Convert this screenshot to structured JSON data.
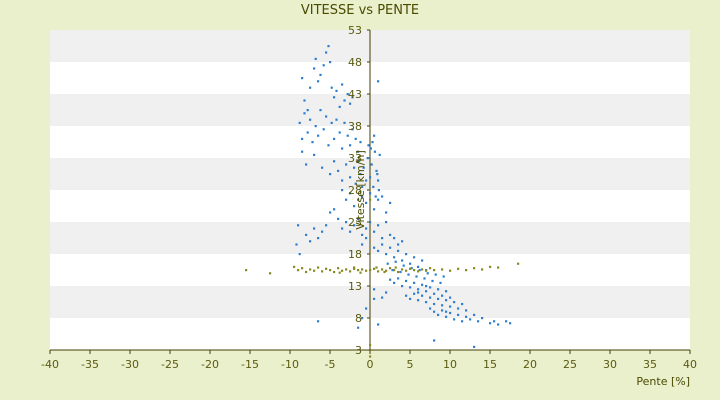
{
  "chart_data": {
    "type": "scatter",
    "title": "VITESSE vs PENTE",
    "xlabel": "Pente [%]",
    "ylabel": "Vitesse [km/h]",
    "xlim": [
      -40,
      40
    ],
    "ylim": [
      3,
      53
    ],
    "x_ticks": [
      -40,
      -35,
      -30,
      -25,
      -20,
      -15,
      -10,
      -5,
      0,
      5,
      10,
      15,
      20,
      25,
      30,
      35,
      40
    ],
    "y_ticks": [
      3,
      8,
      13,
      18,
      23,
      28,
      33,
      38,
      43,
      48,
      53
    ],
    "grid": "horizontal bands",
    "colors": {
      "background": "#eaf0cc",
      "band_light": "#ffffff",
      "band_dark": "#f0f0f0",
      "series_primary": "#2e7fd0",
      "series_secondary": "#8a8a20",
      "axis": "#404000",
      "text": "#4a4a00"
    },
    "series": [
      {
        "name": "",
        "color": "#2e7fd0",
        "points": [
          [
            -8.5,
            45.5
          ],
          [
            -8.2,
            42.0
          ],
          [
            -7.8,
            40.5
          ],
          [
            -7.5,
            44.0
          ],
          [
            -7.0,
            47.0
          ],
          [
            -6.8,
            48.5
          ],
          [
            -6.5,
            45.0
          ],
          [
            -6.2,
            46.0
          ],
          [
            -5.8,
            47.5
          ],
          [
            -5.5,
            49.5
          ],
          [
            -5.2,
            50.5
          ],
          [
            -5.0,
            48.0
          ],
          [
            -4.8,
            44.0
          ],
          [
            -4.5,
            42.5
          ],
          [
            -4.2,
            43.5
          ],
          [
            -3.8,
            41.0
          ],
          [
            -3.5,
            44.5
          ],
          [
            -3.2,
            42.0
          ],
          [
            -2.8,
            43.0
          ],
          [
            -2.5,
            41.5
          ],
          [
            -2.2,
            42.5
          ],
          [
            -8.8,
            38.5
          ],
          [
            -8.5,
            36.0
          ],
          [
            -8.2,
            40.0
          ],
          [
            -7.8,
            37.0
          ],
          [
            -7.5,
            39.0
          ],
          [
            -7.2,
            35.5
          ],
          [
            -6.8,
            38.0
          ],
          [
            -6.5,
            36.5
          ],
          [
            -6.2,
            40.5
          ],
          [
            -5.8,
            37.5
          ],
          [
            -5.5,
            39.5
          ],
          [
            -5.2,
            35.0
          ],
          [
            -4.8,
            38.5
          ],
          [
            -4.5,
            36.0
          ],
          [
            -4.2,
            39.0
          ],
          [
            -3.8,
            37.0
          ],
          [
            -3.5,
            34.5
          ],
          [
            -3.2,
            38.5
          ],
          [
            -2.8,
            36.5
          ],
          [
            -2.5,
            35.0
          ],
          [
            -2.2,
            37.5
          ],
          [
            -1.8,
            36.0
          ],
          [
            -1.5,
            34.0
          ],
          [
            -1.2,
            35.5
          ],
          [
            -8.5,
            34.0
          ],
          [
            -8.0,
            32.0
          ],
          [
            -7.0,
            33.5
          ],
          [
            -6.0,
            31.5
          ],
          [
            -5.0,
            30.5
          ],
          [
            -4.5,
            32.5
          ],
          [
            -4.0,
            31.0
          ],
          [
            -3.5,
            29.5
          ],
          [
            -3.0,
            32.0
          ],
          [
            -2.5,
            30.0
          ],
          [
            -2.0,
            31.5
          ],
          [
            -1.8,
            29.0
          ],
          [
            -1.5,
            32.5
          ],
          [
            -1.2,
            30.5
          ],
          [
            -1.0,
            28.5
          ],
          [
            -0.8,
            31.5
          ],
          [
            -0.5,
            29.5
          ],
          [
            -0.3,
            33.0
          ],
          [
            0.0,
            30.0
          ],
          [
            0.2,
            32.0
          ],
          [
            0.4,
            28.5
          ],
          [
            0.6,
            34.0
          ],
          [
            0.8,
            31.0
          ],
          [
            1.0,
            29.5
          ],
          [
            1.2,
            33.5
          ],
          [
            0.3,
            35.5
          ],
          [
            0.5,
            36.5
          ],
          [
            0.1,
            34.5
          ],
          [
            -0.2,
            35.0
          ],
          [
            0.7,
            27.0
          ],
          [
            0.9,
            30.5
          ],
          [
            1.1,
            28.0
          ],
          [
            -3.5,
            28.0
          ],
          [
            -3.0,
            26.5
          ],
          [
            -2.5,
            27.5
          ],
          [
            -2.0,
            25.5
          ],
          [
            -1.5,
            26.5
          ],
          [
            -1.0,
            27.0
          ],
          [
            -0.5,
            26.0
          ],
          [
            0.0,
            27.5
          ],
          [
            0.5,
            25.0
          ],
          [
            1.0,
            26.5
          ],
          [
            1.5,
            27.0
          ],
          [
            2.0,
            24.5
          ],
          [
            2.5,
            26.0
          ],
          [
            -4.5,
            25.0
          ],
          [
            -5.0,
            24.5
          ],
          [
            -5.5,
            22.5
          ],
          [
            -6.0,
            21.5
          ],
          [
            -6.5,
            20.5
          ],
          [
            -7.0,
            22.0
          ],
          [
            -7.5,
            20.0
          ],
          [
            -8.0,
            21.0
          ],
          [
            -9.0,
            22.5
          ],
          [
            -9.2,
            19.5
          ],
          [
            -8.8,
            18.0
          ],
          [
            -4.0,
            23.5
          ],
          [
            -3.5,
            22.0
          ],
          [
            -3.0,
            23.0
          ],
          [
            -2.5,
            21.5
          ],
          [
            -2.0,
            22.5
          ],
          [
            -1.5,
            23.5
          ],
          [
            -1.0,
            21.0
          ],
          [
            -0.5,
            22.0
          ],
          [
            0.0,
            23.0
          ],
          [
            0.5,
            21.5
          ],
          [
            1.0,
            22.5
          ],
          [
            1.5,
            20.5
          ],
          [
            2.0,
            23.0
          ],
          [
            2.5,
            21.0
          ],
          [
            -1.0,
            19.5
          ],
          [
            -0.5,
            20.5
          ],
          [
            0.5,
            19.0
          ],
          [
            1.0,
            18.5
          ],
          [
            1.5,
            19.5
          ],
          [
            2.0,
            18.0
          ],
          [
            2.5,
            19.0
          ],
          [
            3.0,
            17.5
          ],
          [
            3.5,
            18.5
          ],
          [
            4.0,
            17.0
          ],
          [
            4.5,
            18.0
          ],
          [
            5.0,
            16.5
          ],
          [
            5.5,
            17.5
          ],
          [
            6.0,
            16.0
          ],
          [
            6.5,
            17.0
          ],
          [
            7.0,
            15.5
          ],
          [
            3.0,
            20.5
          ],
          [
            3.5,
            19.5
          ],
          [
            4.0,
            20.0
          ],
          [
            2.2,
            16.5
          ],
          [
            2.8,
            15.5
          ],
          [
            3.2,
            16.8
          ],
          [
            3.8,
            15.2
          ],
          [
            4.2,
            16.2
          ],
          [
            4.8,
            14.8
          ],
          [
            5.2,
            15.8
          ],
          [
            5.8,
            14.5
          ],
          [
            6.2,
            15.5
          ],
          [
            6.8,
            14.2
          ],
          [
            7.2,
            15.0
          ],
          [
            7.8,
            13.8
          ],
          [
            8.2,
            14.8
          ],
          [
            8.8,
            13.5
          ],
          [
            9.2,
            14.5
          ],
          [
            2.5,
            14.0
          ],
          [
            3.0,
            13.5
          ],
          [
            3.5,
            14.2
          ],
          [
            4.0,
            13.0
          ],
          [
            4.5,
            13.8
          ],
          [
            5.0,
            12.8
          ],
          [
            5.5,
            13.5
          ],
          [
            6.0,
            12.5
          ],
          [
            6.5,
            13.2
          ],
          [
            7.0,
            12.2
          ],
          [
            7.5,
            12.8
          ],
          [
            8.0,
            11.8
          ],
          [
            8.5,
            12.5
          ],
          [
            9.0,
            11.5
          ],
          [
            9.5,
            12.2
          ],
          [
            10.0,
            11.2
          ],
          [
            4.5,
            11.5
          ],
          [
            5.0,
            11.0
          ],
          [
            5.5,
            11.8
          ],
          [
            6.0,
            10.8
          ],
          [
            6.5,
            11.5
          ],
          [
            7.0,
            10.5
          ],
          [
            7.5,
            11.2
          ],
          [
            8.0,
            10.2
          ],
          [
            8.5,
            11.0
          ],
          [
            9.0,
            10.0
          ],
          [
            9.5,
            10.8
          ],
          [
            10.0,
            9.8
          ],
          [
            10.5,
            10.5
          ],
          [
            11.0,
            9.5
          ],
          [
            11.5,
            10.2
          ],
          [
            12.0,
            9.2
          ],
          [
            7.5,
            9.5
          ],
          [
            8.0,
            9.0
          ],
          [
            8.5,
            8.5
          ],
          [
            9.0,
            9.2
          ],
          [
            9.5,
            8.2
          ],
          [
            10.0,
            8.8
          ],
          [
            10.5,
            7.8
          ],
          [
            11.0,
            8.5
          ],
          [
            11.5,
            7.5
          ],
          [
            12.0,
            8.2
          ],
          [
            12.5,
            7.8
          ],
          [
            13.0,
            8.5
          ],
          [
            13.5,
            7.5
          ],
          [
            14.0,
            8.0
          ],
          [
            15.0,
            7.2
          ],
          [
            15.5,
            7.5
          ],
          [
            16.0,
            7.0
          ],
          [
            17.0,
            7.5
          ],
          [
            17.5,
            7.2
          ],
          [
            13.0,
            3.5
          ],
          [
            8.0,
            4.5
          ],
          [
            1.0,
            7.0
          ],
          [
            -1.5,
            6.5
          ],
          [
            -1.0,
            8.0
          ],
          [
            -6.5,
            7.5
          ],
          [
            0.5,
            11.0
          ],
          [
            1.5,
            11.2
          ],
          [
            2.0,
            12.0
          ],
          [
            1.0,
            45.0
          ],
          [
            0.5,
            12.5
          ],
          [
            -0.5,
            9.5
          ],
          [
            6.0,
            12.0
          ],
          [
            7.0,
            13.0
          ],
          [
            9.5,
            9.0
          ]
        ]
      },
      {
        "name": "",
        "color": "#8a8a20",
        "points": [
          [
            -15.5,
            15.5
          ],
          [
            -12.5,
            15.0
          ],
          [
            -9.5,
            16.0
          ],
          [
            -9.0,
            15.5
          ],
          [
            -8.5,
            15.8
          ],
          [
            -8.0,
            15.2
          ],
          [
            -7.5,
            15.6
          ],
          [
            -7.0,
            15.4
          ],
          [
            -6.5,
            15.9
          ],
          [
            -6.0,
            15.3
          ],
          [
            -5.5,
            15.7
          ],
          [
            -5.0,
            15.5
          ],
          [
            -4.5,
            15.2
          ],
          [
            -4.0,
            15.8
          ],
          [
            -3.5,
            15.4
          ],
          [
            -3.0,
            15.6
          ],
          [
            -2.5,
            15.3
          ],
          [
            -2.0,
            15.7
          ],
          [
            -1.5,
            15.5
          ],
          [
            -1.0,
            15.6
          ],
          [
            -0.5,
            15.4
          ],
          [
            0.0,
            15.5
          ],
          [
            0.5,
            15.7
          ],
          [
            1.0,
            15.3
          ],
          [
            1.5,
            15.6
          ],
          [
            2.0,
            15.4
          ],
          [
            2.5,
            15.8
          ],
          [
            3.0,
            15.5
          ],
          [
            3.5,
            15.2
          ],
          [
            4.0,
            15.6
          ],
          [
            4.5,
            15.4
          ],
          [
            5.0,
            15.7
          ],
          [
            5.5,
            15.5
          ],
          [
            6.0,
            15.3
          ],
          [
            6.5,
            15.6
          ],
          [
            7.0,
            15.4
          ],
          [
            7.5,
            15.8
          ],
          [
            8.0,
            15.5
          ],
          [
            9.0,
            15.6
          ],
          [
            10.0,
            15.4
          ],
          [
            11.0,
            15.7
          ],
          [
            12.0,
            15.5
          ],
          [
            13.0,
            15.8
          ],
          [
            14.0,
            15.6
          ],
          [
            15.0,
            16.0
          ],
          [
            16.0,
            15.9
          ],
          [
            18.5,
            16.5
          ],
          [
            0.0,
            26.5
          ],
          [
            0.0,
            2.0
          ],
          [
            0.0,
            3.8
          ],
          [
            -2.0,
            15.9
          ],
          [
            -1.2,
            15.1
          ],
          [
            0.8,
            15.9
          ],
          [
            1.8,
            15.2
          ],
          [
            3.2,
            15.9
          ],
          [
            -3.8,
            15.1
          ]
        ]
      }
    ]
  }
}
